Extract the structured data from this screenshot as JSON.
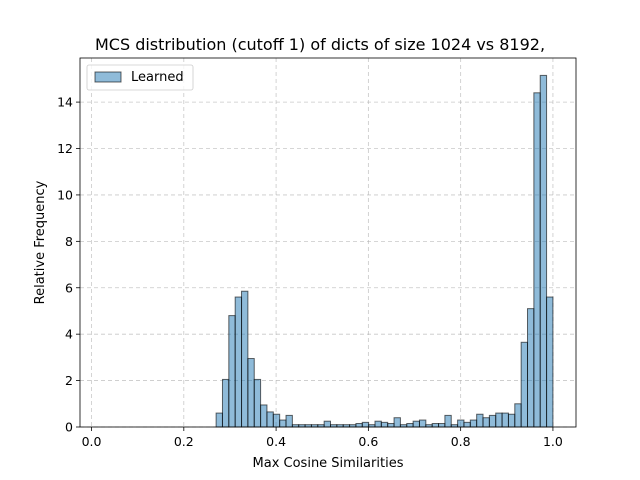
{
  "chart_data": {
    "type": "bar",
    "title": "MCS distribution (cutoff 1) of dicts of size 1024 vs 8192,",
    "xlabel": "Max Cosine Similarities",
    "ylabel": "Relative Frequency",
    "xlim": [
      -0.025,
      1.05
    ],
    "ylim": [
      0,
      15.9
    ],
    "xticks": [
      0.0,
      0.2,
      0.4,
      0.6,
      0.8,
      1.0
    ],
    "xtick_labels": [
      "0.0",
      "0.2",
      "0.4",
      "0.6",
      "0.8",
      "1.0"
    ],
    "yticks": [
      0,
      2,
      4,
      6,
      8,
      10,
      12,
      14
    ],
    "ytick_labels": [
      "0",
      "2",
      "4",
      "6",
      "8",
      "10",
      "12",
      "14"
    ],
    "grid": true,
    "legend_position": "top-left",
    "bin_width": 0.01,
    "series": [
      {
        "name": "Learned",
        "color": "#1f77b4",
        "bins": [
          [
            0.27,
            0.6
          ],
          [
            0.28,
            2.05
          ],
          [
            0.29,
            4.8
          ],
          [
            0.3,
            5.6
          ],
          [
            0.31,
            5.85
          ],
          [
            0.32,
            2.95
          ],
          [
            0.33,
            2.05
          ],
          [
            0.34,
            0.95
          ],
          [
            0.35,
            0.65
          ],
          [
            0.36,
            0.55
          ],
          [
            0.37,
            0.3
          ],
          [
            0.38,
            0.5
          ],
          [
            0.39,
            0.1
          ],
          [
            0.4,
            0.1
          ],
          [
            0.41,
            0.1
          ],
          [
            0.43,
            0.1
          ],
          [
            0.45,
            0.1
          ],
          [
            0.46,
            0.25
          ],
          [
            0.51,
            0.1
          ],
          [
            0.52,
            0.1
          ],
          [
            0.53,
            0.1
          ],
          [
            0.57,
            0.1
          ],
          [
            0.58,
            0.15
          ],
          [
            0.59,
            0.2
          ],
          [
            0.6,
            0.1
          ],
          [
            0.61,
            0.25
          ],
          [
            0.62,
            0.2
          ],
          [
            0.63,
            0.15
          ],
          [
            0.64,
            0.4
          ],
          [
            0.65,
            0.1
          ],
          [
            0.66,
            0.15
          ],
          [
            0.67,
            0.25
          ],
          [
            0.68,
            0.3
          ],
          [
            0.69,
            0.1
          ],
          [
            0.7,
            0.15
          ],
          [
            0.71,
            0.15
          ],
          [
            0.72,
            0.5
          ],
          [
            0.73,
            0.1
          ],
          [
            0.74,
            0.3
          ],
          [
            0.75,
            0.2
          ],
          [
            0.76,
            0.3
          ],
          [
            0.77,
            0.55
          ],
          [
            0.78,
            0.4
          ],
          [
            0.79,
            0.5
          ],
          [
            0.8,
            0.6
          ],
          [
            0.81,
            0.6
          ],
          [
            0.82,
            0.55
          ],
          [
            0.83,
            1.0
          ],
          [
            0.84,
            3.65
          ],
          [
            0.85,
            5.1
          ],
          [
            0.86,
            14.4
          ],
          [
            0.87,
            15.15
          ],
          [
            0.88,
            5.6
          ]
        ]
      }
    ]
  }
}
